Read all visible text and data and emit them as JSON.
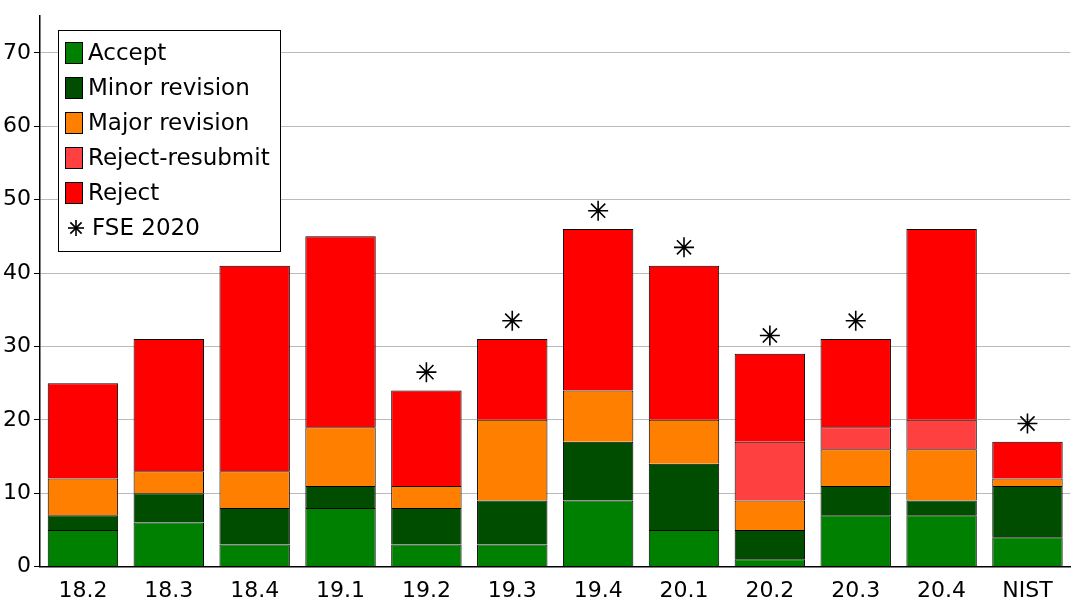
{
  "chart_data": {
    "type": "bar",
    "stacked": true,
    "categories": [
      "18.2",
      "18.3",
      "18.4",
      "19.1",
      "19.2",
      "19.3",
      "19.4",
      "20.1",
      "20.2",
      "20.3",
      "20.4",
      "NIST"
    ],
    "series": [
      {
        "name": "Accept",
        "color": "#008000",
        "values": [
          5,
          6,
          3,
          8,
          3,
          3,
          9,
          5,
          1,
          7,
          7,
          4
        ]
      },
      {
        "name": "Minor revision",
        "color": "#004d00",
        "values": [
          2,
          4,
          5,
          3,
          5,
          6,
          8,
          9,
          4,
          4,
          2,
          7
        ]
      },
      {
        "name": "Major revision",
        "color": "#ff8000",
        "values": [
          5,
          3,
          5,
          8,
          3,
          11,
          7,
          6,
          4,
          5,
          7,
          1
        ]
      },
      {
        "name": "Reject-resubmit",
        "color": "#ff4040",
        "values": [
          0,
          0,
          0,
          0,
          0,
          0,
          0,
          0,
          8,
          3,
          4,
          0
        ]
      },
      {
        "name": "Reject",
        "color": "#ff0000",
        "values": [
          13,
          18,
          28,
          26,
          13,
          11,
          22,
          21,
          12,
          12,
          26,
          5
        ]
      },
      {
        "name": "FSE 2020",
        "type": "scatter",
        "marker": "cross",
        "color": "#000000",
        "x": [
          "19.2",
          "19.3",
          "19.4",
          "20.1",
          "20.2",
          "20.3",
          "NIST"
        ],
        "values": [
          26.5,
          33.5,
          48.5,
          43.5,
          31.5,
          33.5,
          19.5
        ]
      }
    ],
    "ylim": [
      0,
      75
    ],
    "yticks": [
      0,
      10,
      20,
      30,
      40,
      50,
      60,
      70
    ],
    "grid": "y",
    "legend": "top left"
  }
}
